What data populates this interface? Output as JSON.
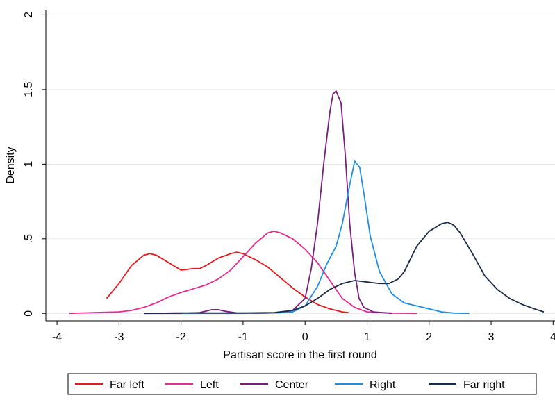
{
  "chart_data": {
    "type": "line",
    "xlabel": "Partisan score in the first round",
    "ylabel": "Density",
    "xlim": [
      -4.18,
      4.03
    ],
    "ylim": [
      -0.05,
      2.03
    ],
    "xticks": [
      -4,
      -3,
      -2,
      -1,
      0,
      1,
      2,
      3,
      4
    ],
    "yticks": [
      0,
      {
        "value": 0.5,
        "label": ".5"
      },
      1,
      1.5,
      2
    ],
    "grid": true,
    "legend": "bottom",
    "series": [
      {
        "name": "Far left",
        "color": "#e41a1c",
        "x": [
          -3.2,
          -3.0,
          -2.8,
          -2.6,
          -2.5,
          -2.4,
          -2.2,
          -2.0,
          -1.8,
          -1.7,
          -1.6,
          -1.4,
          -1.2,
          -1.1,
          -1.0,
          -0.8,
          -0.6,
          -0.4,
          -0.2,
          0,
          0.2,
          0.4,
          0.6,
          0.7
        ],
        "values": [
          0.1,
          0.2,
          0.32,
          0.39,
          0.4,
          0.39,
          0.34,
          0.29,
          0.3,
          0.3,
          0.32,
          0.37,
          0.4,
          0.41,
          0.4,
          0.36,
          0.31,
          0.24,
          0.17,
          0.11,
          0.06,
          0.03,
          0.01,
          0.005
        ]
      },
      {
        "name": "Left",
        "color": "#e8298f",
        "x": [
          -3.8,
          -3.4,
          -3.0,
          -2.8,
          -2.6,
          -2.4,
          -2.2,
          -2.0,
          -1.8,
          -1.6,
          -1.4,
          -1.2,
          -1.0,
          -0.8,
          -0.6,
          -0.5,
          -0.4,
          -0.2,
          0,
          0.2,
          0.4,
          0.6,
          0.8,
          1.0,
          1.4,
          1.8
        ],
        "values": [
          0,
          0.005,
          0.01,
          0.02,
          0.04,
          0.07,
          0.11,
          0.14,
          0.165,
          0.19,
          0.23,
          0.29,
          0.38,
          0.47,
          0.54,
          0.55,
          0.54,
          0.5,
          0.43,
          0.34,
          0.22,
          0.1,
          0.04,
          0.01,
          0.002,
          0
        ]
      },
      {
        "name": "Center",
        "color": "#7b1c7e",
        "x": [
          -2.6,
          -2.0,
          -1.7,
          -1.5,
          -1.4,
          -1.3,
          -1.1,
          -0.8,
          -0.4,
          -0.2,
          0,
          0.1,
          0.2,
          0.3,
          0.4,
          0.45,
          0.5,
          0.58,
          0.65,
          0.72,
          0.8,
          0.87,
          0.95,
          1.1,
          1.4
        ],
        "values": [
          0,
          0,
          0.005,
          0.025,
          0.025,
          0.015,
          0.003,
          0,
          0.005,
          0.02,
          0.1,
          0.3,
          0.6,
          1.0,
          1.35,
          1.47,
          1.49,
          1.41,
          1.05,
          0.6,
          0.27,
          0.1,
          0.04,
          0.01,
          0
        ]
      },
      {
        "name": "Right",
        "color": "#1f8fe5",
        "x": [
          -2.0,
          -1.0,
          -0.5,
          -0.2,
          0,
          0.2,
          0.35,
          0.5,
          0.6,
          0.7,
          0.8,
          0.88,
          0.95,
          1.05,
          1.2,
          1.4,
          1.6,
          1.8,
          2.0,
          2.2,
          2.4,
          2.65
        ],
        "values": [
          0,
          0,
          0.003,
          0.01,
          0.05,
          0.18,
          0.33,
          0.45,
          0.6,
          0.82,
          1.02,
          0.98,
          0.8,
          0.52,
          0.28,
          0.13,
          0.07,
          0.05,
          0.03,
          0.01,
          0.002,
          0
        ]
      },
      {
        "name": "Far right",
        "color": "#1a2a4a",
        "x": [
          -2.6,
          -2.0,
          -1.0,
          -0.5,
          -0.2,
          0,
          0.2,
          0.4,
          0.6,
          0.8,
          1.0,
          1.2,
          1.35,
          1.5,
          1.6,
          1.8,
          2.0,
          2.2,
          2.3,
          2.4,
          2.5,
          2.7,
          2.9,
          3.1,
          3.3,
          3.5,
          3.7,
          3.85
        ],
        "values": [
          0,
          0.003,
          0.003,
          0.005,
          0.02,
          0.05,
          0.1,
          0.16,
          0.2,
          0.22,
          0.21,
          0.2,
          0.2,
          0.23,
          0.28,
          0.45,
          0.55,
          0.6,
          0.61,
          0.59,
          0.54,
          0.4,
          0.25,
          0.16,
          0.1,
          0.06,
          0.03,
          0.01
        ]
      }
    ]
  }
}
